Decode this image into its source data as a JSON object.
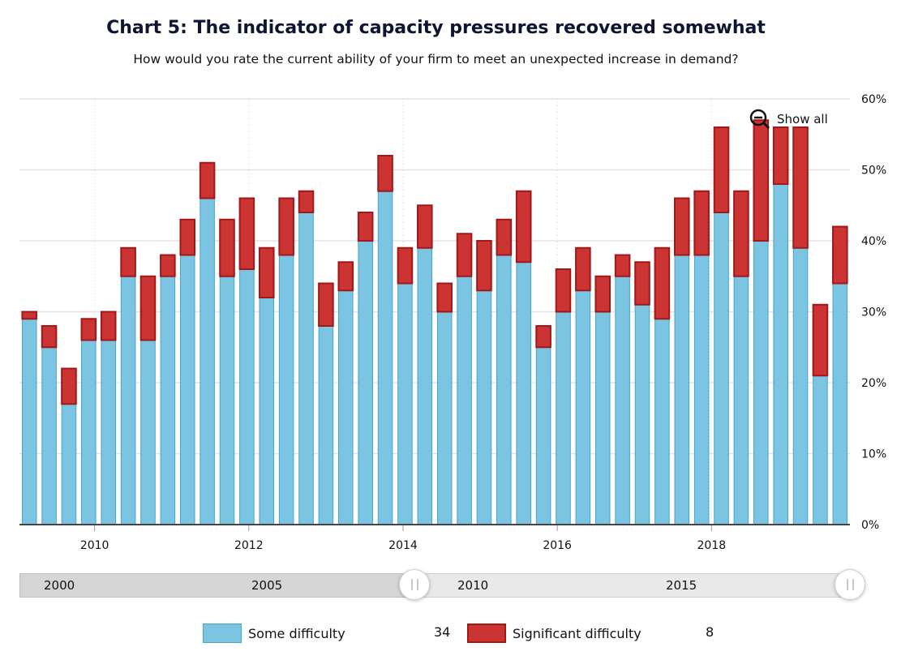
{
  "chart_data": {
    "type": "bar",
    "stacked": true,
    "title": "Chart 5: The indicator of capacity pressures recovered somewhat",
    "subtitle": "How would you rate the current ability of your firm to meet an unexpected increase in demand?",
    "ylim": [
      0,
      60
    ],
    "yticks": [
      "0%",
      "10%",
      "20%",
      "30%",
      "40%",
      "50%",
      "60%"
    ],
    "xticks": [
      "2010",
      "2012",
      "2014",
      "2016",
      "2018"
    ],
    "series": [
      {
        "name": "Some difficulty",
        "color": "#7bc4e2",
        "values": [
          29,
          25,
          17,
          26,
          26,
          35,
          26,
          35,
          38,
          46,
          35,
          36,
          32,
          38,
          44,
          28,
          33,
          40,
          47,
          34,
          39,
          30,
          35,
          33,
          38,
          37,
          25,
          30,
          33,
          30,
          35,
          31,
          29,
          38,
          38,
          44,
          35,
          40,
          48,
          39,
          21,
          34
        ]
      },
      {
        "name": "Significant difficulty",
        "color": "#cc3333",
        "values": [
          1,
          3,
          5,
          3,
          4,
          4,
          9,
          3,
          5,
          5,
          8,
          10,
          7,
          8,
          3,
          6,
          4,
          4,
          5,
          5,
          6,
          4,
          6,
          7,
          5,
          10,
          3,
          6,
          6,
          5,
          3,
          6,
          10,
          8,
          9,
          12,
          12,
          17,
          8,
          17,
          10,
          8
        ]
      }
    ],
    "legend": [
      {
        "label": "Some difficulty",
        "value": "34"
      },
      {
        "label": "Significant difficulty",
        "value": "8"
      }
    ]
  },
  "zoom": {
    "show_all_label": "Show all"
  },
  "navigator": {
    "labels": [
      "2000",
      "2005",
      "2010",
      "2015"
    ]
  }
}
